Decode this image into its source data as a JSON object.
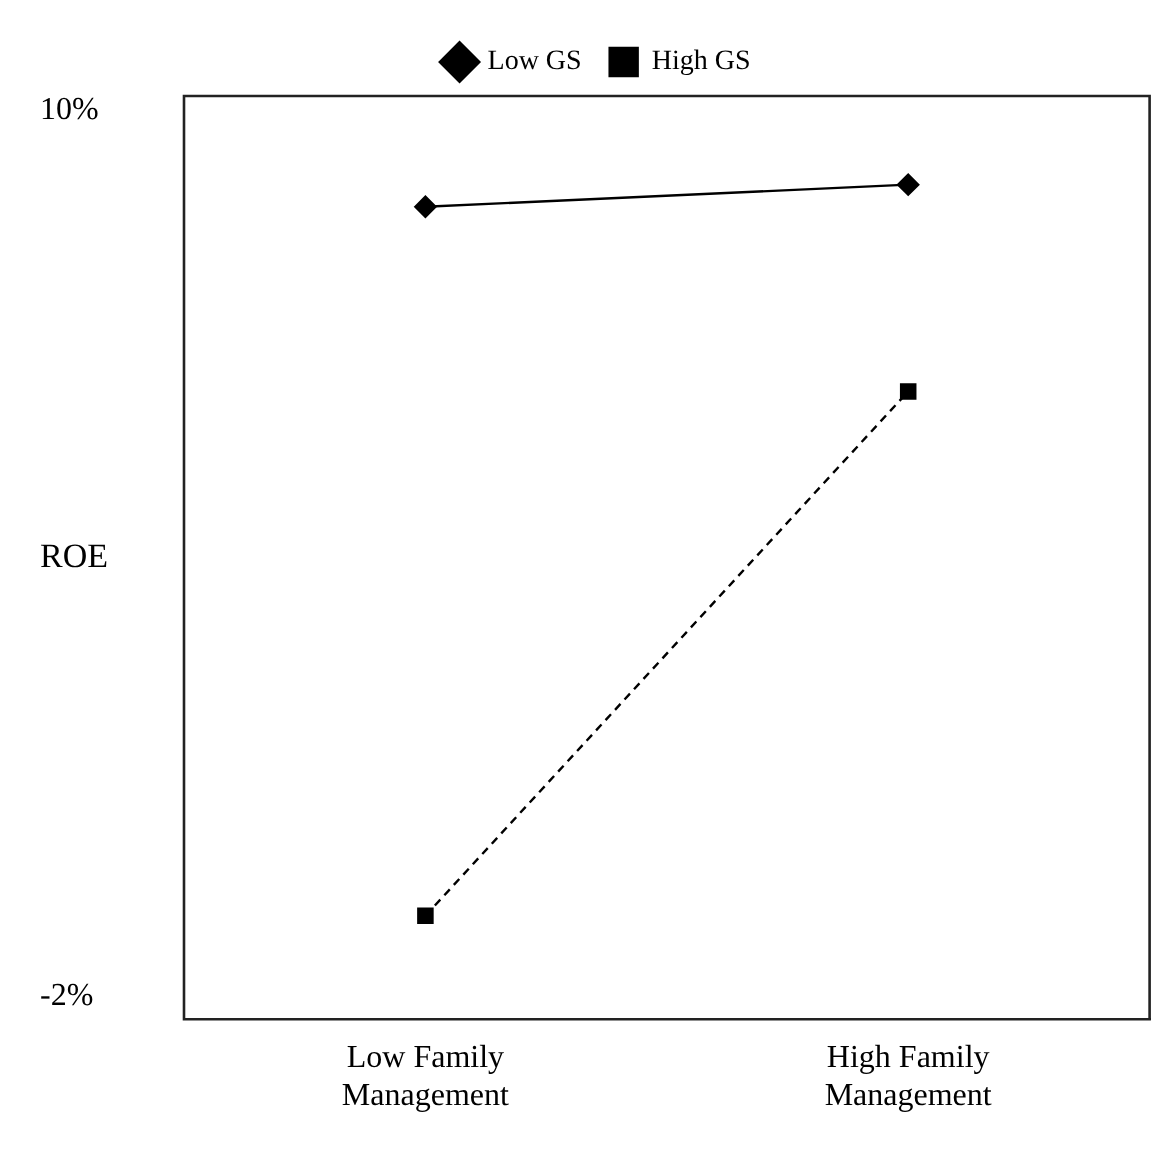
{
  "chart_data": {
    "type": "line",
    "ylabel": "ROE",
    "categories": [
      "Low Family Management",
      "High Family Management"
    ],
    "series": [
      {
        "name": "Low GS",
        "color": "#000000",
        "values": [
          8.7,
          9.0
        ],
        "marker": "diamond",
        "line_style": "solid"
      },
      {
        "name": "High GS",
        "color": "#000000",
        "values": [
          -0.9,
          6.2
        ],
        "marker": "square",
        "line_style": "dashed"
      }
    ],
    "ylim": [
      -2.3,
      10.2
    ],
    "yticks": [
      {
        "value": 10,
        "label": "10%"
      },
      {
        "value": -2,
        "label": "-2%"
      }
    ],
    "grid": false,
    "legend": "top"
  }
}
